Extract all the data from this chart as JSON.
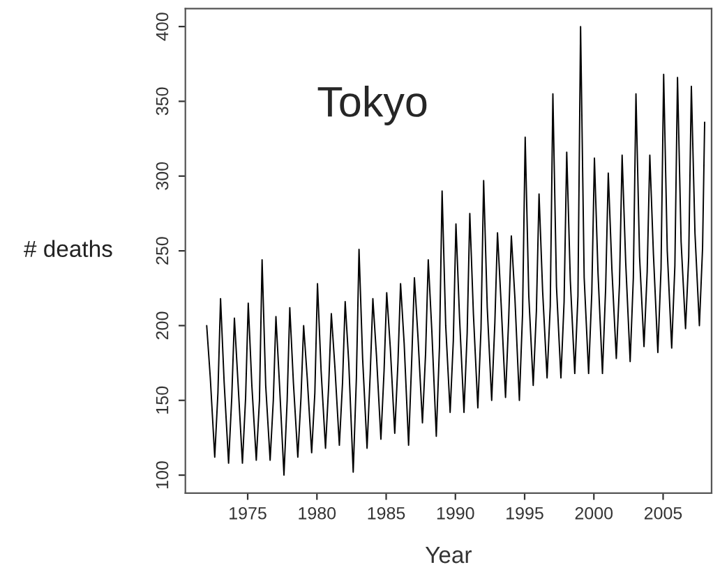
{
  "chart_data": {
    "type": "line",
    "title": "Tokyo",
    "xlabel": "Year",
    "ylabel": "# deaths",
    "xlim": [
      1970.5,
      2008.5
    ],
    "xticks": [
      1975,
      1980,
      1985,
      1990,
      1995,
      2000,
      2005
    ],
    "ylim": [
      88,
      412
    ],
    "yticks": [
      100,
      150,
      200,
      250,
      300,
      350,
      400
    ],
    "grid": false,
    "legend": false,
    "marker": "none",
    "line_style": "solid",
    "series": [
      {
        "color": "#000000",
        "x": [
          1972.04,
          1972.3,
          1972.62,
          1972.85,
          1973.04,
          1973.3,
          1973.62,
          1973.85,
          1974.04,
          1974.3,
          1974.62,
          1974.85,
          1975.04,
          1975.3,
          1975.62,
          1975.85,
          1976.04,
          1976.3,
          1976.62,
          1976.85,
          1977.04,
          1977.3,
          1977.62,
          1977.85,
          1978.04,
          1978.3,
          1978.62,
          1978.85,
          1979.04,
          1979.3,
          1979.62,
          1979.85,
          1980.04,
          1980.3,
          1980.62,
          1980.85,
          1981.04,
          1981.3,
          1981.62,
          1981.85,
          1982.04,
          1982.3,
          1982.62,
          1982.85,
          1983.04,
          1983.3,
          1983.62,
          1983.85,
          1984.04,
          1984.3,
          1984.62,
          1984.85,
          1985.04,
          1985.3,
          1985.62,
          1985.85,
          1986.04,
          1986.3,
          1986.62,
          1986.85,
          1987.04,
          1987.3,
          1987.62,
          1987.85,
          1988.04,
          1988.3,
          1988.62,
          1988.85,
          1989.04,
          1989.3,
          1989.62,
          1989.85,
          1990.04,
          1990.3,
          1990.62,
          1990.85,
          1991.04,
          1991.3,
          1991.62,
          1991.85,
          1992.04,
          1992.3,
          1992.62,
          1992.85,
          1993.04,
          1993.3,
          1993.62,
          1993.85,
          1994.04,
          1994.3,
          1994.62,
          1994.85,
          1995.04,
          1995.3,
          1995.62,
          1995.85,
          1996.04,
          1996.3,
          1996.62,
          1996.85,
          1997.04,
          1997.3,
          1997.62,
          1997.85,
          1998.04,
          1998.3,
          1998.62,
          1998.85,
          1999.04,
          1999.3,
          1999.62,
          1999.85,
          2000.04,
          2000.3,
          2000.62,
          2000.85,
          2001.04,
          2001.3,
          2001.62,
          2001.85,
          2002.04,
          2002.3,
          2002.62,
          2002.85,
          2003.04,
          2003.3,
          2003.62,
          2003.85,
          2004.04,
          2004.3,
          2004.62,
          2004.85,
          2005.04,
          2005.3,
          2005.62,
          2005.85,
          2006.04,
          2006.3,
          2006.62,
          2006.85,
          2007.04,
          2007.3,
          2007.62,
          2007.85,
          2008.0
        ],
        "values": [
          200,
          165,
          112,
          155,
          218,
          162,
          108,
          152,
          205,
          162,
          108,
          152,
          215,
          160,
          110,
          150,
          244,
          160,
          110,
          150,
          206,
          160,
          100,
          150,
          212,
          162,
          112,
          152,
          200,
          165,
          115,
          155,
          228,
          170,
          118,
          160,
          208,
          172,
          120,
          162,
          216,
          175,
          102,
          165,
          251,
          178,
          118,
          168,
          218,
          180,
          124,
          170,
          222,
          185,
          128,
          175,
          228,
          188,
          120,
          178,
          232,
          192,
          135,
          182,
          244,
          196,
          126,
          186,
          290,
          200,
          142,
          190,
          268,
          205,
          142,
          195,
          275,
          208,
          145,
          198,
          297,
          212,
          150,
          202,
          262,
          215,
          152,
          205,
          260,
          218,
          150,
          208,
          326,
          220,
          160,
          210,
          288,
          223,
          165,
          213,
          355,
          226,
          165,
          216,
          316,
          230,
          168,
          220,
          400,
          232,
          168,
          222,
          312,
          235,
          168,
          225,
          302,
          238,
          178,
          228,
          314,
          242,
          176,
          232,
          355,
          246,
          186,
          236,
          314,
          248,
          182,
          238,
          368,
          250,
          185,
          240,
          366,
          256,
          198,
          246,
          360,
          262,
          200,
          252,
          336
        ]
      }
    ]
  }
}
